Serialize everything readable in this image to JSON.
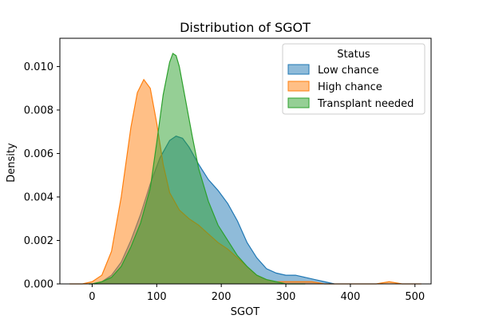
{
  "chart_data": {
    "type": "area",
    "title": "Distribution of SGOT",
    "xlabel": "SGOT",
    "ylabel": "Density",
    "xlim": [
      -50,
      525
    ],
    "ylim": [
      0,
      0.0113
    ],
    "xticks": [
      0,
      100,
      200,
      300,
      400,
      500
    ],
    "xtick_labels": [
      "0",
      "100",
      "200",
      "300",
      "400",
      "500"
    ],
    "yticks": [
      0,
      0.002,
      0.004,
      0.006,
      0.008,
      0.01
    ],
    "ytick_labels": [
      "0.000",
      "0.002",
      "0.004",
      "0.006",
      "0.008",
      "0.010"
    ],
    "grid": false,
    "legend": {
      "title": "Status",
      "placement": "top-right"
    },
    "series": [
      {
        "name": "Low chance",
        "color": "#1f77b4",
        "x": [
          -5,
          0,
          15,
          30,
          45,
          60,
          75,
          90,
          105,
          120,
          130,
          140,
          150,
          165,
          180,
          195,
          210,
          225,
          240,
          255,
          270,
          285,
          300,
          315,
          330,
          345,
          360,
          375
        ],
        "y": [
          0.0,
          0.0,
          0.0001,
          0.0004,
          0.001,
          0.002,
          0.0032,
          0.0046,
          0.0058,
          0.0066,
          0.0068,
          0.0067,
          0.0063,
          0.0055,
          0.0048,
          0.0043,
          0.0037,
          0.0029,
          0.0019,
          0.0012,
          0.0007,
          0.0005,
          0.0004,
          0.0004,
          0.0003,
          0.0002,
          0.0001,
          0.0
        ]
      },
      {
        "name": "High chance",
        "color": "#ff7f0e",
        "x": [
          -35,
          -15,
          0,
          15,
          30,
          45,
          60,
          70,
          80,
          90,
          100,
          110,
          120,
          135,
          150,
          165,
          180,
          195,
          210,
          225,
          240,
          255,
          270,
          285,
          300,
          320,
          340,
          360,
          380,
          400,
          420,
          440,
          460,
          480,
          510
        ],
        "y": [
          0.0,
          0.0,
          0.0001,
          0.0004,
          0.0015,
          0.004,
          0.0072,
          0.0088,
          0.0094,
          0.009,
          0.0074,
          0.0055,
          0.0042,
          0.0034,
          0.003,
          0.0027,
          0.0023,
          0.0019,
          0.0016,
          0.0012,
          0.0008,
          0.0004,
          0.0002,
          0.0001,
          0.0001,
          0.0001,
          0.0001,
          0.0,
          0.0,
          0.0,
          0.0,
          0.0,
          0.0001,
          0.0,
          0.0
        ]
      },
      {
        "name": "Transplant needed",
        "color": "#2ca02c",
        "x": [
          -5,
          0,
          15,
          30,
          45,
          60,
          75,
          90,
          100,
          110,
          120,
          125,
          130,
          135,
          145,
          155,
          165,
          180,
          195,
          210,
          225,
          240,
          255,
          270,
          285,
          300,
          315,
          330
        ],
        "y": [
          0.0,
          0.0,
          0.0001,
          0.0003,
          0.0008,
          0.0017,
          0.0028,
          0.0044,
          0.0065,
          0.0087,
          0.0102,
          0.0106,
          0.0105,
          0.01,
          0.0084,
          0.0068,
          0.0053,
          0.0038,
          0.0027,
          0.002,
          0.0013,
          0.0008,
          0.0004,
          0.0002,
          0.0001,
          0.0,
          0.0,
          0.0
        ]
      }
    ]
  }
}
